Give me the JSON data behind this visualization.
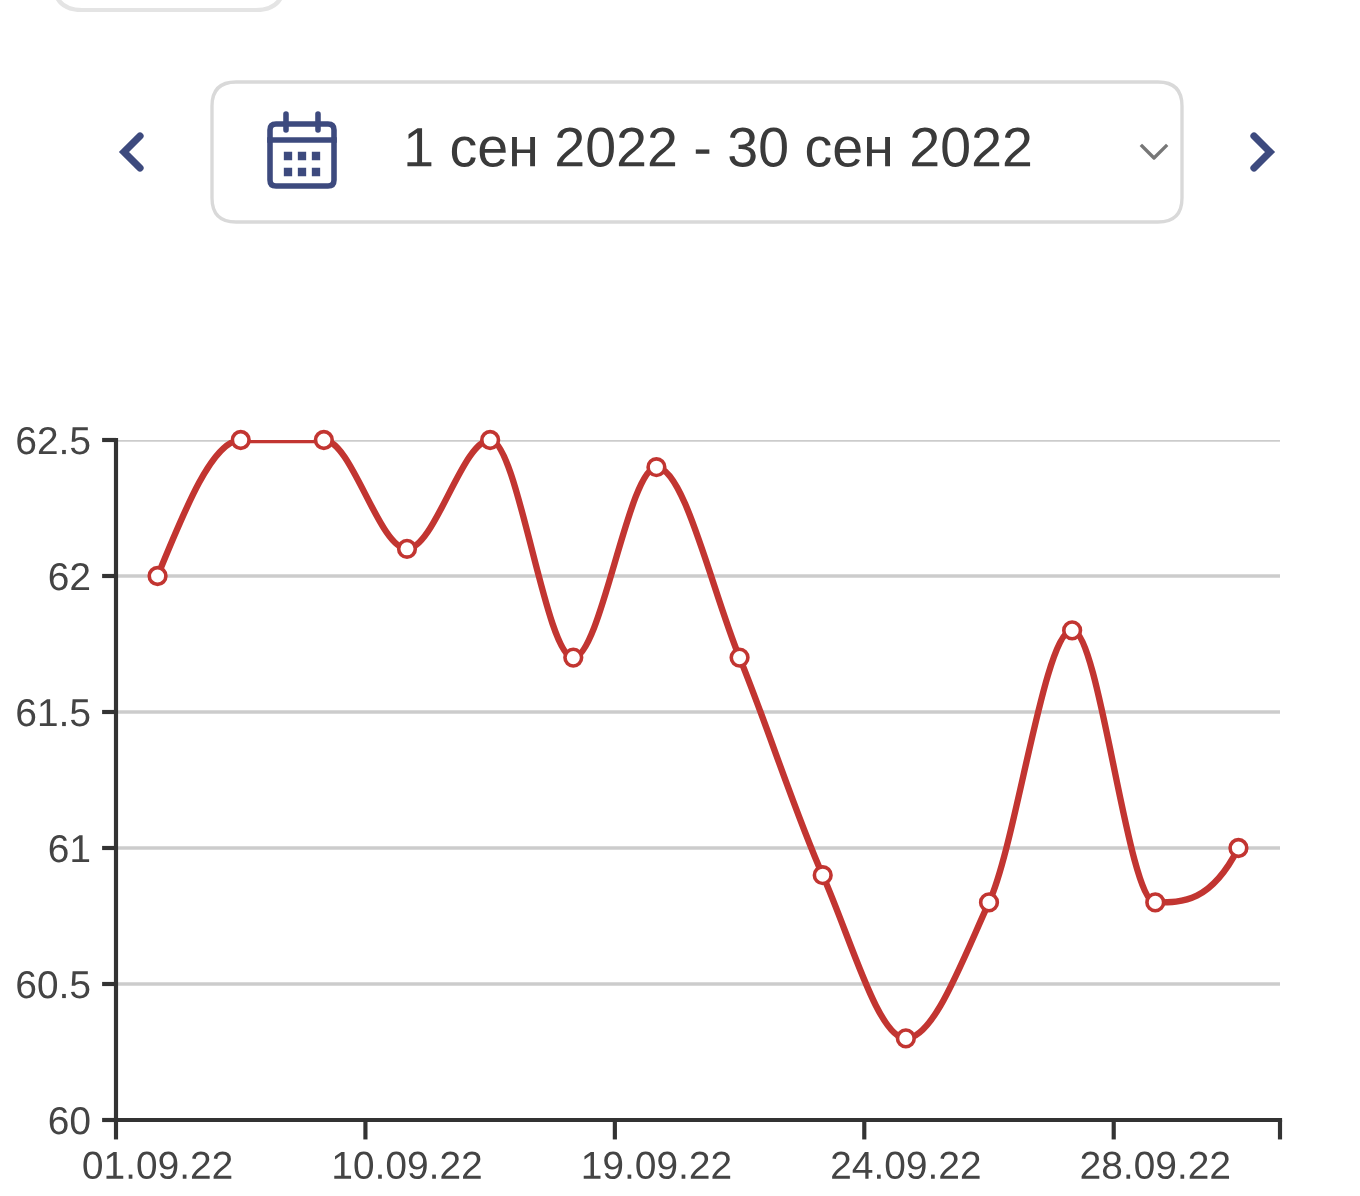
{
  "chart_data": {
    "type": "line",
    "title": "1 сен 2022 - 30 сен 2022",
    "categories": [
      "01.09.22",
      null,
      null,
      "10.09.22",
      null,
      null,
      "19.09.22",
      null,
      null,
      "24.09.22",
      null,
      null,
      "28.09.22",
      null
    ],
    "series": [
      {
        "color": "#c23531",
        "values": [
          62.0,
          62.5,
          62.5,
          62.1,
          62.5,
          61.7,
          62.4,
          61.7,
          60.9,
          60.3,
          60.8,
          61.8,
          60.8,
          61.0
        ]
      }
    ],
    "ylim": [
      60,
      62.5
    ],
    "yticks": [
      60,
      60.5,
      61,
      61.5,
      62,
      62.5
    ],
    "grid": "y",
    "marker": "circle",
    "line_style": "solid"
  }
}
